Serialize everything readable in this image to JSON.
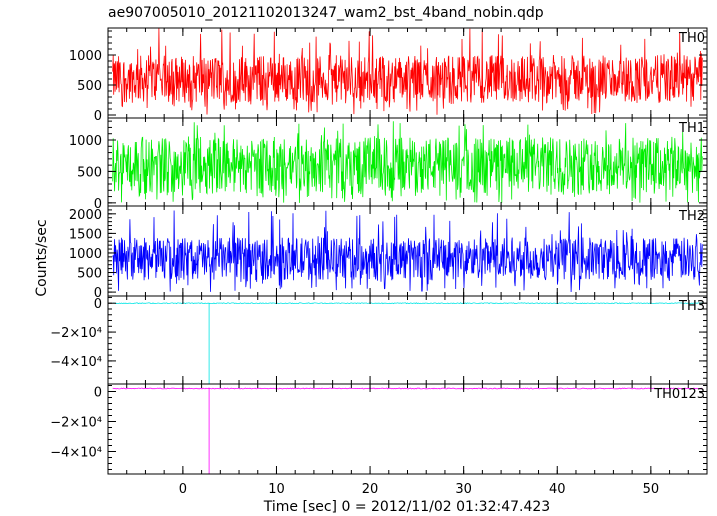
{
  "chart_data": {
    "type": "line",
    "title": "ae907005010_20121102013247_wam2_bst_4band_nobin.qdp",
    "xlabel": "Time [sec] 0 = 2012/11/02 01:32:47.423",
    "ylabel": "Counts/sec",
    "xlim": [
      -8,
      56
    ],
    "xticks": [
      0,
      10,
      20,
      30,
      40,
      50
    ],
    "xticklabels": [
      "0",
      "10",
      "20",
      "30",
      "40",
      "50"
    ],
    "grid": false,
    "panels": [
      {
        "name": "TH0",
        "color": "#ff0000",
        "ylim": [
          -50,
          1450
        ],
        "yticks": [
          0,
          500,
          1000
        ],
        "yticklabels": [
          "0",
          "500",
          "1000"
        ],
        "typical_range": [
          200,
          1000
        ],
        "mean": 550,
        "spike_max": 1450
      },
      {
        "name": "TH1",
        "color": "#00ee00",
        "ylim": [
          -50,
          1350
        ],
        "yticks": [
          0,
          500,
          1000
        ],
        "yticklabels": [
          "0",
          "500",
          "1000"
        ],
        "typical_range": [
          150,
          1050
        ],
        "mean": 580,
        "spike_max": 1300
      },
      {
        "name": "TH2",
        "color": "#0000ff",
        "ylim": [
          -100,
          2200
        ],
        "yticks": [
          0,
          500,
          1000,
          1500,
          2000
        ],
        "yticklabels": [
          "0",
          "500",
          "1000",
          "1500",
          "2000"
        ],
        "typical_range": [
          300,
          1400
        ],
        "mean": 750,
        "spike_max": 2100
      },
      {
        "name": "TH3",
        "color": "#00e5e5",
        "ylim": [
          -56000,
          5000
        ],
        "yticks": [
          0,
          -20000,
          -40000
        ],
        "yticklabels": [
          "0",
          "−2×10⁴",
          "−4×10⁴"
        ],
        "typical_range": [
          0,
          0
        ],
        "mean": 0,
        "dropout_time": 2.8,
        "dropout_value": -56000
      },
      {
        "name": "TH0123",
        "color": "#ff00ff",
        "ylim": [
          -55000,
          5000
        ],
        "yticks": [
          0,
          -20000,
          -40000
        ],
        "yticklabels": [
          "0",
          "−2×10⁴",
          "−4×10⁴"
        ],
        "typical_range": [
          1500,
          2500
        ],
        "mean": 2000,
        "dropout_time": 2.8,
        "dropout_value": -55000
      }
    ]
  }
}
